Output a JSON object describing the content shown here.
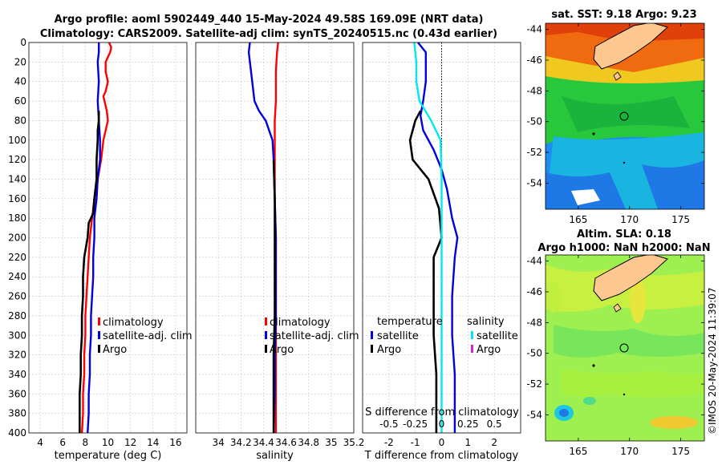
{
  "header": {
    "line1": "Argo profile: aoml 5902449_440 15-May-2024 49.58S 169.09E (NRT data)",
    "line2": "Climatology: CARS2009. Satellite-adj clim: synTS_20240515.nc (0.43d earlier)"
  },
  "map_sst": {
    "title": "sat. SST: 9.18 Argo: 9.23",
    "yticks": [
      "-44",
      "-46",
      "-48",
      "-50",
      "-52",
      "-54"
    ],
    "xticks": [
      "165",
      "170",
      "175"
    ]
  },
  "map_sla": {
    "title1": "Altim. SLA: 0.18",
    "title2": "Argo h1000: NaN h2000: NaN",
    "yticks": [
      "-44",
      "-46",
      "-48",
      "-50",
      "-52",
      "-54"
    ],
    "xticks": [
      "165",
      "170",
      "175"
    ]
  },
  "copyright": "©IMOS 20-May-2024 11:39:07",
  "chart_data": [
    {
      "type": "line",
      "name": "temperature",
      "xlabel": "temperature (deg C)",
      "ylabel": "",
      "xlim": [
        3,
        17
      ],
      "ylim": [
        400,
        0
      ],
      "xticks": [
        4,
        6,
        8,
        10,
        12,
        14,
        16
      ],
      "yticks": [
        0,
        20,
        40,
        60,
        80,
        100,
        120,
        140,
        160,
        180,
        200,
        220,
        240,
        260,
        280,
        300,
        320,
        340,
        360,
        380,
        400
      ],
      "legend": [
        "climatology",
        "satellite-adj. clim",
        "Argo"
      ],
      "series": [
        {
          "name": "climatology",
          "color": "#ff0000",
          "points": [
            [
              10.1,
              0
            ],
            [
              10.3,
              5
            ],
            [
              10.2,
              10
            ],
            [
              9.8,
              20
            ],
            [
              9.8,
              30
            ],
            [
              10.0,
              40
            ],
            [
              9.8,
              50
            ],
            [
              9.6,
              55
            ],
            [
              9.9,
              70
            ],
            [
              10.0,
              80
            ],
            [
              9.8,
              90
            ],
            [
              9.6,
              100
            ],
            [
              9.4,
              120
            ],
            [
              9.1,
              140
            ],
            [
              8.8,
              160
            ],
            [
              8.6,
              180
            ],
            [
              8.4,
              200
            ],
            [
              8.3,
              220
            ],
            [
              8.2,
              240
            ],
            [
              8.1,
              260
            ],
            [
              8.0,
              280
            ],
            [
              8.0,
              300
            ],
            [
              7.9,
              320
            ],
            [
              7.9,
              340
            ],
            [
              7.8,
              360
            ],
            [
              7.8,
              380
            ],
            [
              7.7,
              400
            ]
          ]
        },
        {
          "name": "satellite-adj. clim",
          "color": "#0000e0",
          "points": [
            [
              9.2,
              0
            ],
            [
              9.2,
              10
            ],
            [
              9.1,
              20
            ],
            [
              9.2,
              40
            ],
            [
              9.1,
              60
            ],
            [
              9.2,
              80
            ],
            [
              9.3,
              100
            ],
            [
              9.3,
              120
            ],
            [
              9.1,
              140
            ],
            [
              9.0,
              160
            ],
            [
              8.8,
              180
            ],
            [
              8.8,
              200
            ],
            [
              8.7,
              220
            ],
            [
              8.7,
              240
            ],
            [
              8.6,
              260
            ],
            [
              8.5,
              280
            ],
            [
              8.5,
              300
            ],
            [
              8.4,
              320
            ],
            [
              8.4,
              340
            ],
            [
              8.3,
              360
            ],
            [
              8.3,
              380
            ],
            [
              8.2,
              400
            ]
          ]
        },
        {
          "name": "Argo",
          "color": "#000000",
          "points": [
            [
              9.2,
              70
            ],
            [
              9.2,
              80
            ],
            [
              9.1,
              90
            ],
            [
              9.1,
              100
            ],
            [
              9.0,
              120
            ],
            [
              9.0,
              140
            ],
            [
              8.8,
              160
            ],
            [
              8.7,
              175
            ],
            [
              8.3,
              185
            ],
            [
              8.2,
              200
            ],
            [
              7.9,
              220
            ],
            [
              7.8,
              240
            ],
            [
              7.8,
              260
            ],
            [
              7.7,
              280
            ],
            [
              7.7,
              300
            ],
            [
              7.6,
              320
            ],
            [
              7.6,
              340
            ],
            [
              7.5,
              360
            ],
            [
              7.5,
              380
            ],
            [
              7.5,
              400
            ]
          ]
        }
      ]
    },
    {
      "type": "line",
      "name": "salinity",
      "xlabel": "salinity",
      "ylabel": "",
      "xlim": [
        33.8,
        35.2
      ],
      "xticks": [
        34,
        34.2,
        34.4,
        34.6,
        34.8,
        35,
        35.2
      ],
      "xticklabels": [
        "34",
        "34.2",
        "34.4",
        "34.6",
        "34.8",
        "35",
        "35.2"
      ],
      "ylim": [
        400,
        0
      ],
      "legend": [
        "climatology",
        "satellite-adj. clim",
        "Argo"
      ],
      "series": [
        {
          "name": "climatology",
          "color": "#ff0000",
          "points": [
            [
              34.53,
              0
            ],
            [
              34.52,
              10
            ],
            [
              34.51,
              30
            ],
            [
              34.51,
              60
            ],
            [
              34.5,
              80
            ],
            [
              34.5,
              120
            ],
            [
              34.5,
              160
            ],
            [
              34.51,
              200
            ],
            [
              34.51,
              240
            ],
            [
              34.51,
              280
            ],
            [
              34.51,
              320
            ],
            [
              34.51,
              360
            ],
            [
              34.51,
              400
            ]
          ]
        },
        {
          "name": "satellite-adj. clim",
          "color": "#0000e0",
          "points": [
            [
              34.28,
              0
            ],
            [
              34.27,
              10
            ],
            [
              34.28,
              20
            ],
            [
              34.3,
              40
            ],
            [
              34.32,
              60
            ],
            [
              34.36,
              70
            ],
            [
              34.42,
              80
            ],
            [
              34.48,
              100
            ],
            [
              34.49,
              120
            ],
            [
              34.5,
              160
            ],
            [
              34.51,
              200
            ],
            [
              34.51,
              240
            ],
            [
              34.51,
              280
            ],
            [
              34.5,
              320
            ],
            [
              34.5,
              360
            ],
            [
              34.49,
              400
            ]
          ]
        },
        {
          "name": "Argo",
          "color": "#000000",
          "points": [
            [
              34.49,
              120
            ],
            [
              34.5,
              160
            ],
            [
              34.5,
              200
            ],
            [
              34.5,
              240
            ],
            [
              34.5,
              280
            ],
            [
              34.49,
              320
            ],
            [
              34.49,
              360
            ],
            [
              34.49,
              400
            ]
          ]
        }
      ]
    },
    {
      "type": "line",
      "name": "difference",
      "xlabel": "T difference from climatology",
      "toplabel": "S difference from climatology",
      "xlim": [
        -3,
        3
      ],
      "xticks": [
        -2,
        -1,
        0,
        1,
        2
      ],
      "sticks": [
        "-0.5",
        "-0.25",
        "0",
        "0.25",
        "0.5"
      ],
      "ylim": [
        400,
        0
      ],
      "legend_temperature": {
        "title": "temperature",
        "items": [
          "satellite",
          "Argo"
        ]
      },
      "legend_salinity": {
        "title": "salinity",
        "items": [
          "satellite",
          "Argo"
        ]
      },
      "series": [
        {
          "name": "temperature satellite",
          "color": "#0000e0",
          "points": [
            [
              -0.9,
              0
            ],
            [
              -0.6,
              10
            ],
            [
              -0.6,
              20
            ],
            [
              -0.6,
              40
            ],
            [
              -0.7,
              60
            ],
            [
              -0.8,
              75
            ],
            [
              -0.7,
              90
            ],
            [
              -0.3,
              110
            ],
            [
              0.0,
              130
            ],
            [
              0.2,
              150
            ],
            [
              0.4,
              180
            ],
            [
              0.6,
              200
            ],
            [
              0.5,
              220
            ],
            [
              0.4,
              260
            ],
            [
              0.4,
              300
            ],
            [
              0.5,
              340
            ],
            [
              0.5,
              380
            ],
            [
              0.5,
              400
            ]
          ]
        },
        {
          "name": "temperature Argo",
          "color": "#000000",
          "points": [
            [
              -0.8,
              70
            ],
            [
              -1.0,
              80
            ],
            [
              -1.2,
              100
            ],
            [
              -1.1,
              120
            ],
            [
              -0.5,
              140
            ],
            [
              -0.1,
              170
            ],
            [
              0.0,
              200
            ],
            [
              -0.3,
              220
            ],
            [
              -0.3,
              260
            ],
            [
              -0.3,
              300
            ],
            [
              -0.2,
              340
            ],
            [
              -0.2,
              380
            ],
            [
              -0.2,
              400
            ]
          ]
        },
        {
          "name": "salinity satellite",
          "color": "#00e8f0",
          "points": [
            [
              -0.26,
              0
            ],
            [
              -0.24,
              20
            ],
            [
              -0.24,
              40
            ],
            [
              -0.21,
              60
            ],
            [
              -0.1,
              80
            ],
            [
              -0.01,
              100
            ],
            [
              0.0,
              140
            ],
            [
              0.0,
              200
            ],
            [
              0.0,
              300
            ],
            [
              0.0,
              400
            ]
          ]
        }
      ]
    }
  ]
}
